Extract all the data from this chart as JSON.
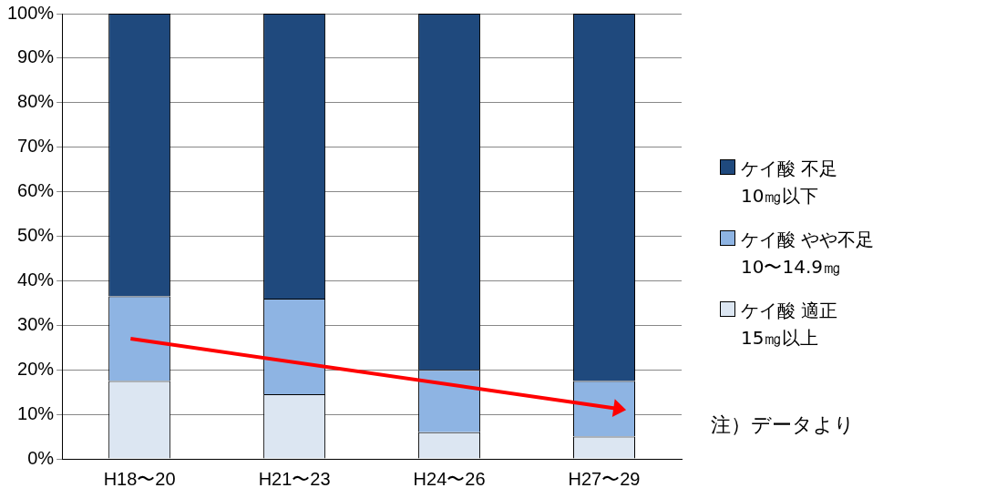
{
  "chart_data": {
    "type": "bar",
    "stacked": true,
    "categories": [
      "H18〜20",
      "H21〜23",
      "H24〜26",
      "H27〜29"
    ],
    "series": [
      {
        "name": "ケイ酸 適正\n15㎎以上",
        "color": "#dce6f2",
        "values": [
          17.5,
          14.5,
          6,
          5
        ]
      },
      {
        "name": "ケイ酸 やや不足\n10〜14.9㎎",
        "color": "#8eb4e3",
        "values": [
          19,
          21.5,
          14,
          12.5
        ]
      },
      {
        "name": "ケイ酸 不足\n10㎎以下",
        "color": "#1f497d",
        "values": [
          63.5,
          64,
          80,
          82.5
        ]
      }
    ],
    "ylim": [
      0,
      100
    ],
    "yticks": [
      {
        "value": 0,
        "label": "0%"
      },
      {
        "value": 10,
        "label": "10%"
      },
      {
        "value": 20,
        "label": "20%"
      },
      {
        "value": 30,
        "label": "30%"
      },
      {
        "value": 40,
        "label": "40%"
      },
      {
        "value": 50,
        "label": "50%"
      },
      {
        "value": 60,
        "label": "60%"
      },
      {
        "value": 70,
        "label": "70%"
      },
      {
        "value": 80,
        "label": "80%"
      },
      {
        "value": 90,
        "label": "90%"
      },
      {
        "value": 100,
        "label": "100%"
      }
    ],
    "grid": "y",
    "legend": "right",
    "annotations": [
      "注）データより"
    ]
  }
}
